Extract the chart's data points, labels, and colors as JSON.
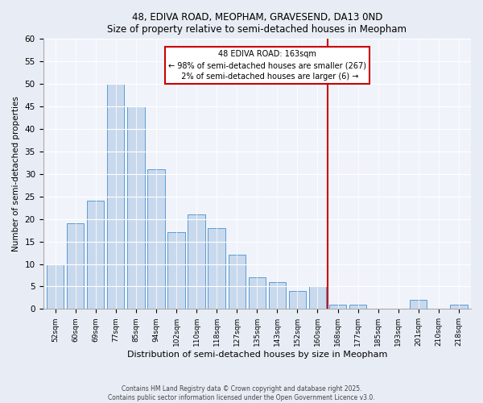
{
  "title1": "48, EDIVA ROAD, MEOPHAM, GRAVESEND, DA13 0ND",
  "title2": "Size of property relative to semi-detached houses in Meopham",
  "xlabel": "Distribution of semi-detached houses by size in Meopham",
  "ylabel": "Number of semi-detached properties",
  "categories": [
    "52sqm",
    "60sqm",
    "69sqm",
    "77sqm",
    "85sqm",
    "94sqm",
    "102sqm",
    "110sqm",
    "118sqm",
    "127sqm",
    "135sqm",
    "143sqm",
    "152sqm",
    "160sqm",
    "168sqm",
    "177sqm",
    "185sqm",
    "193sqm",
    "201sqm",
    "210sqm",
    "218sqm"
  ],
  "values": [
    10,
    19,
    24,
    50,
    45,
    31,
    17,
    21,
    18,
    12,
    7,
    6,
    4,
    5,
    1,
    1,
    0,
    0,
    2,
    0,
    1
  ],
  "bar_color": "#c9d9ed",
  "bar_edge_color": "#5b9bd5",
  "vline_index": 13.5,
  "vline_label": "48 EDIVA ROAD: 163sqm",
  "smaller_pct": "98%",
  "smaller_n": 267,
  "larger_pct": "2%",
  "larger_n": 6,
  "annotation_box_color": "#ffffff",
  "annotation_box_edge": "#cc0000",
  "vline_color": "#cc0000",
  "ylim": [
    0,
    60
  ],
  "yticks": [
    0,
    5,
    10,
    15,
    20,
    25,
    30,
    35,
    40,
    45,
    50,
    55,
    60
  ],
  "footer1": "Contains HM Land Registry data © Crown copyright and database right 2025.",
  "footer2": "Contains public sector information licensed under the Open Government Licence v3.0.",
  "bg_color": "#e8edf5",
  "plot_bg_color": "#f0f4fa"
}
